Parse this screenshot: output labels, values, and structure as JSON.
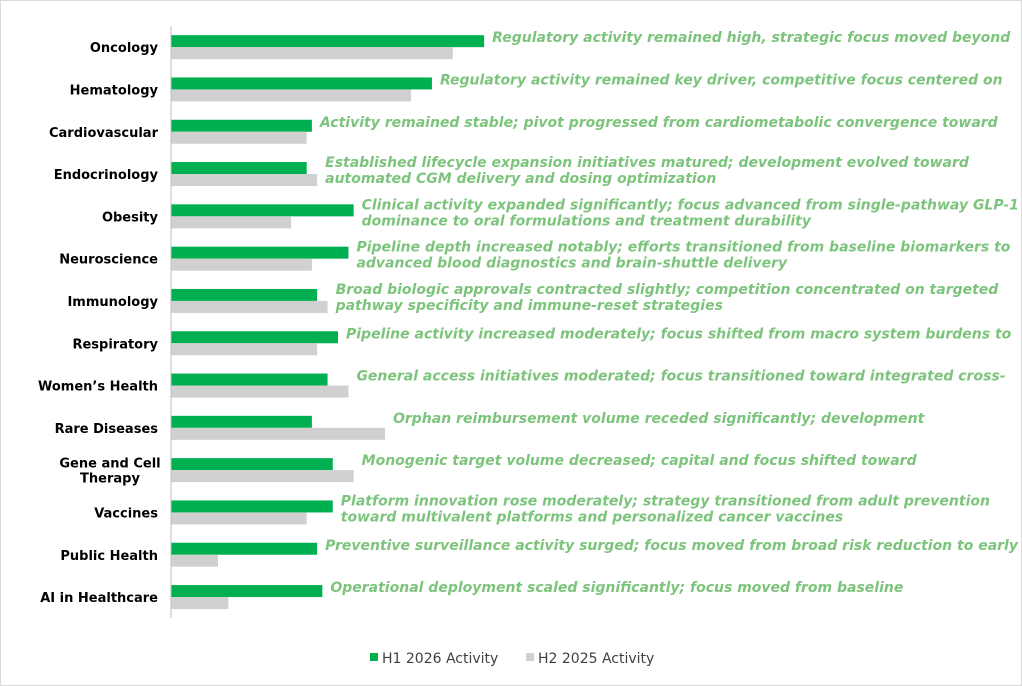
{
  "chart_data": {
    "type": "bar",
    "orientation": "horizontal",
    "categories": [
      [
        "Oncology"
      ],
      [
        "Hematology"
      ],
      [
        "Cardiovascular"
      ],
      [
        "Endocrinology"
      ],
      [
        "Obesity"
      ],
      [
        "Neuroscience"
      ],
      [
        "Immunology"
      ],
      [
        "Respiratory"
      ],
      [
        "Women’s Health"
      ],
      [
        "Rare Diseases"
      ],
      [
        "Gene and Cell",
        "Therapy"
      ],
      [
        "Vaccines"
      ],
      [
        "Public Health"
      ],
      [
        "AI in Healthcare"
      ]
    ],
    "series": [
      {
        "name": "H1 2026 Activity",
        "color": "#00b050",
        "values": [
          60,
          50,
          27,
          26,
          35,
          34,
          28,
          32,
          30,
          27,
          31,
          31,
          28,
          29
        ]
      },
      {
        "name": "H2 2025 Activity",
        "color": "#d0d0d0",
        "values": [
          54,
          46,
          26,
          28,
          23,
          27,
          30,
          28,
          34,
          41,
          35,
          26,
          9,
          11
        ]
      }
    ],
    "xlim": [
      0,
      160
    ],
    "grid": false,
    "legend_position": "bottom",
    "annotation_color": "#7cc47c",
    "annotations": [
      [
        "Regulatory activity remained high, strategic focus moved beyond"
      ],
      [
        "Regulatory activity remained key driver, competitive focus centered on"
      ],
      [
        "Activity remained stable; pivot progressed from cardiometabolic convergence toward"
      ],
      [
        "Established lifecycle expansion initiatives matured; development evolved toward",
        "automated CGM delivery and dosing optimization"
      ],
      [
        "Clinical activity expanded significantly; focus advanced from single-pathway GLP-1",
        "dominance to oral formulations and treatment durability"
      ],
      [
        "Pipeline depth increased notably; efforts transitioned from baseline biomarkers to",
        "advanced blood diagnostics and brain-shuttle delivery"
      ],
      [
        "Broad biologic approvals contracted slightly; competition concentrated on targeted",
        "pathway specificity and immune-reset strategies"
      ],
      [
        "Pipeline activity increased moderately; focus shifted from macro system burdens to"
      ],
      [
        "General access initiatives moderated; focus transitioned toward integrated cross-"
      ],
      [
        "Orphan reimbursement volume receded significantly; development"
      ],
      [
        "Monogenic target volume decreased; capital and focus shifted toward"
      ],
      [
        "Platform innovation rose moderately; strategy transitioned from adult prevention",
        "toward multivalent platforms and personalized cancer vaccines"
      ],
      [
        "Preventive surveillance activity surged; focus moved from broad risk reduction to early"
      ],
      [
        "Operational deployment scaled significantly; focus moved from baseline"
      ]
    ]
  }
}
